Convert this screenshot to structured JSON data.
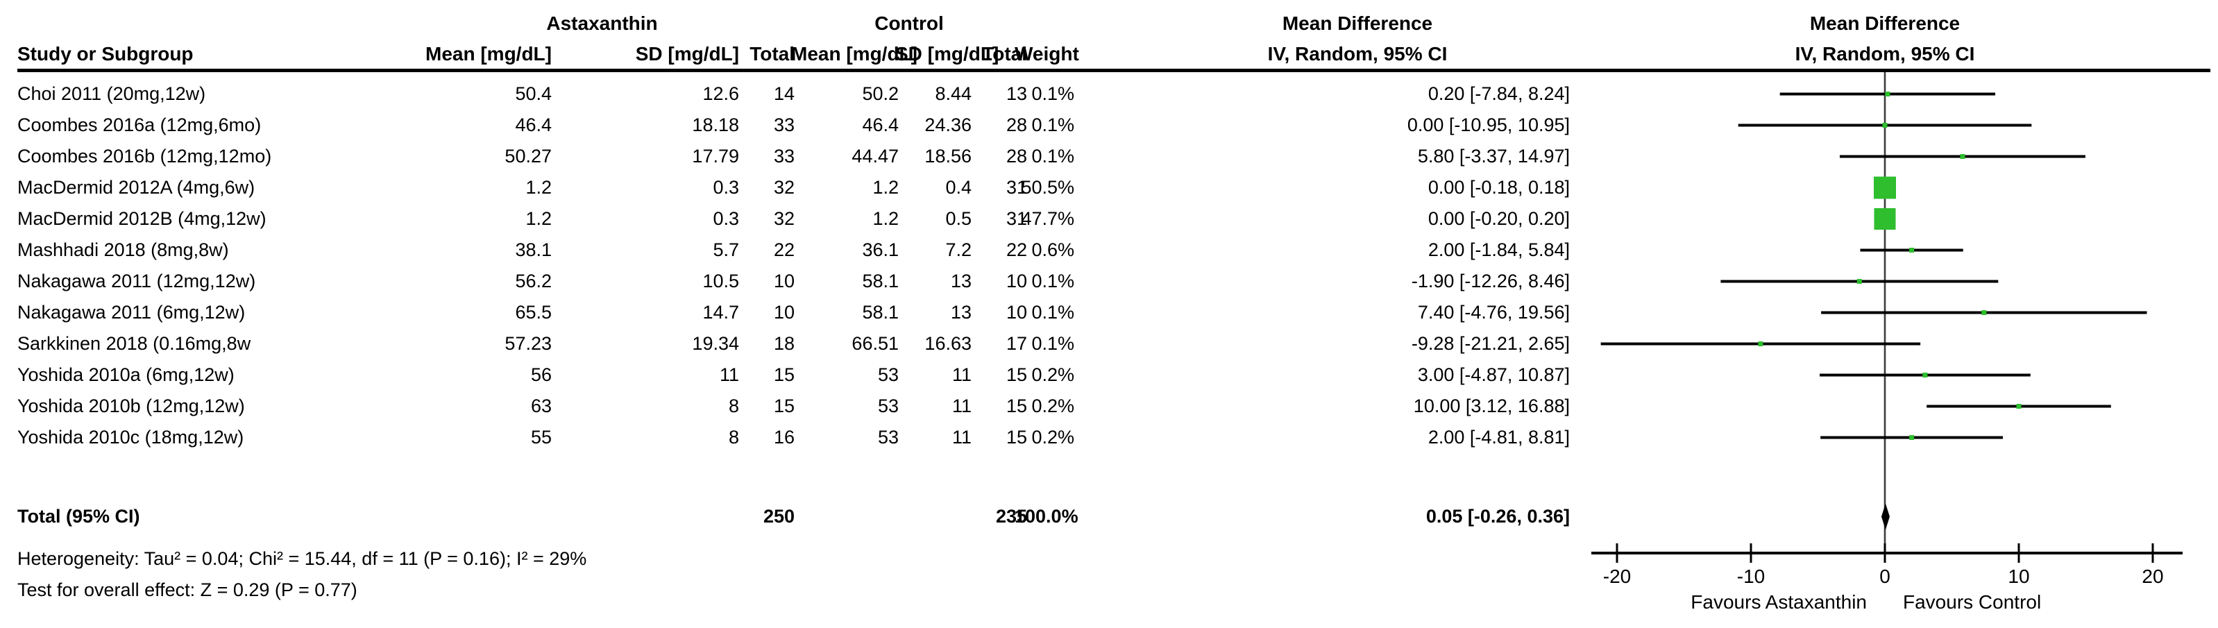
{
  "header": {
    "study_col": "Study or Subgroup",
    "group_treatment": "Astaxanthin",
    "group_control": "Control",
    "mean_label": "Mean [mg/dL]",
    "sd_label": "SD [mg/dL]",
    "total_label": "Total",
    "weight_label": "Weight",
    "effect_title": "Mean Difference",
    "effect_subtitle": "IV, Random, 95% CI",
    "plot_title": "Mean Difference",
    "plot_subtitle": "IV, Random, 95% CI"
  },
  "chart_data": {
    "type": "scatter",
    "subtype": "forest-plot",
    "effect_measure": "Mean Difference, IV, Random, 95% CI",
    "studies": [
      {
        "name": "Choi 2011 (20mg,12w)",
        "t_mean": "50.4",
        "t_sd": "12.6",
        "t_n": "14",
        "c_mean": "50.2",
        "c_sd": "8.44",
        "c_n": "13",
        "weight": "0.1%",
        "weight_val": 0.1,
        "ci_text": "0.20 [-7.84, 8.24]",
        "md": 0.2,
        "lo": -7.84,
        "hi": 8.24
      },
      {
        "name": "Coombes 2016a (12mg,6mo)",
        "t_mean": "46.4",
        "t_sd": "18.18",
        "t_n": "33",
        "c_mean": "46.4",
        "c_sd": "24.36",
        "c_n": "28",
        "weight": "0.1%",
        "weight_val": 0.1,
        "ci_text": "0.00 [-10.95, 10.95]",
        "md": 0.0,
        "lo": -10.95,
        "hi": 10.95
      },
      {
        "name": "Coombes 2016b (12mg,12mo)",
        "t_mean": "50.27",
        "t_sd": "17.79",
        "t_n": "33",
        "c_mean": "44.47",
        "c_sd": "18.56",
        "c_n": "28",
        "weight": "0.1%",
        "weight_val": 0.1,
        "ci_text": "5.80 [-3.37, 14.97]",
        "md": 5.8,
        "lo": -3.37,
        "hi": 14.97
      },
      {
        "name": "MacDermid 2012A (4mg,6w)",
        "t_mean": "1.2",
        "t_sd": "0.3",
        "t_n": "32",
        "c_mean": "1.2",
        "c_sd": "0.4",
        "c_n": "31",
        "weight": "50.5%",
        "weight_val": 50.5,
        "ci_text": "0.00 [-0.18, 0.18]",
        "md": 0.0,
        "lo": -0.18,
        "hi": 0.18
      },
      {
        "name": "MacDermid 2012B (4mg,12w)",
        "t_mean": "1.2",
        "t_sd": "0.3",
        "t_n": "32",
        "c_mean": "1.2",
        "c_sd": "0.5",
        "c_n": "31",
        "weight": "47.7%",
        "weight_val": 47.7,
        "ci_text": "0.00 [-0.20, 0.20]",
        "md": 0.0,
        "lo": -0.2,
        "hi": 0.2
      },
      {
        "name": "Mashhadi 2018 (8mg,8w)",
        "t_mean": "38.1",
        "t_sd": "5.7",
        "t_n": "22",
        "c_mean": "36.1",
        "c_sd": "7.2",
        "c_n": "22",
        "weight": "0.6%",
        "weight_val": 0.6,
        "ci_text": "2.00 [-1.84, 5.84]",
        "md": 2.0,
        "lo": -1.84,
        "hi": 5.84
      },
      {
        "name": "Nakagawa 2011 (12mg,12w)",
        "t_mean": "56.2",
        "t_sd": "10.5",
        "t_n": "10",
        "c_mean": "58.1",
        "c_sd": "13",
        "c_n": "10",
        "weight": "0.1%",
        "weight_val": 0.1,
        "ci_text": "-1.90 [-12.26, 8.46]",
        "md": -1.9,
        "lo": -12.26,
        "hi": 8.46
      },
      {
        "name": "Nakagawa 2011 (6mg,12w)",
        "t_mean": "65.5",
        "t_sd": "14.7",
        "t_n": "10",
        "c_mean": "58.1",
        "c_sd": "13",
        "c_n": "10",
        "weight": "0.1%",
        "weight_val": 0.1,
        "ci_text": "7.40 [-4.76, 19.56]",
        "md": 7.4,
        "lo": -4.76,
        "hi": 19.56
      },
      {
        "name": "Sarkkinen 2018 (0.16mg,8w",
        "t_mean": "57.23",
        "t_sd": "19.34",
        "t_n": "18",
        "c_mean": "66.51",
        "c_sd": "16.63",
        "c_n": "17",
        "weight": "0.1%",
        "weight_val": 0.1,
        "ci_text": "-9.28 [-21.21, 2.65]",
        "md": -9.28,
        "lo": -21.21,
        "hi": 2.65
      },
      {
        "name": "Yoshida 2010a (6mg,12w)",
        "t_mean": "56",
        "t_sd": "11",
        "t_n": "15",
        "c_mean": "53",
        "c_sd": "11",
        "c_n": "15",
        "weight": "0.2%",
        "weight_val": 0.2,
        "ci_text": "3.00 [-4.87, 10.87]",
        "md": 3.0,
        "lo": -4.87,
        "hi": 10.87
      },
      {
        "name": "Yoshida 2010b (12mg,12w)",
        "t_mean": "63",
        "t_sd": "8",
        "t_n": "15",
        "c_mean": "53",
        "c_sd": "11",
        "c_n": "15",
        "weight": "0.2%",
        "weight_val": 0.2,
        "ci_text": "10.00 [3.12, 16.88]",
        "md": 10.0,
        "lo": 3.12,
        "hi": 16.88
      },
      {
        "name": "Yoshida 2010c (18mg,12w)",
        "t_mean": "55",
        "t_sd": "8",
        "t_n": "16",
        "c_mean": "53",
        "c_sd": "11",
        "c_n": "15",
        "weight": "0.2%",
        "weight_val": 0.2,
        "ci_text": "2.00 [-4.81, 8.81]",
        "md": 2.0,
        "lo": -4.81,
        "hi": 8.81
      }
    ],
    "total": {
      "label": "Total (95% CI)",
      "t_n": "250",
      "c_n": "235",
      "weight": "100.0%",
      "ci_text": "0.05 [-0.26, 0.36]",
      "md": 0.05,
      "lo": -0.26,
      "hi": 0.36
    },
    "footnotes": {
      "heterogeneity": "Heterogeneity: Tau² = 0.04; Chi² = 15.44, df = 11 (P = 0.16); I² = 29%",
      "overall_effect": "Test for overall effect: Z = 0.29 (P = 0.77)"
    },
    "axis": {
      "min": -20,
      "max": 20,
      "ticks": [
        -20,
        -10,
        0,
        10,
        20
      ],
      "tick_labels": [
        "-20",
        "-10",
        "0",
        "10",
        "20"
      ],
      "favours_left": "Favours Astaxanthin",
      "favours_right": "Favours Control"
    },
    "colors": {
      "square": "#2EBE2E",
      "ci_line": "#000000",
      "diamond": "#000000",
      "zero_line": "#3d3d3d"
    }
  }
}
